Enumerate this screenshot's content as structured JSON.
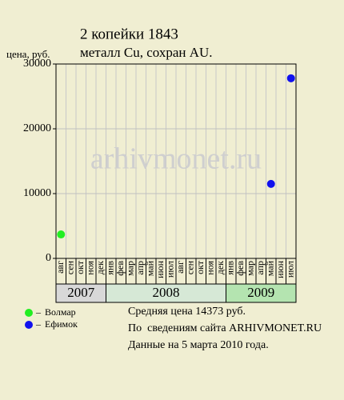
{
  "chart_data": {
    "type": "scatter",
    "title": "2 копейки 1843",
    "subtitle": "металл Cu, сохран AU.",
    "y_label": "цена, руб.",
    "watermark": "arhivmonet.ru",
    "groups": [
      {
        "label": "2007",
        "color": "#d8d8d8",
        "categories": [
          "авг",
          "сен",
          "окт",
          "ноя",
          "дек"
        ]
      },
      {
        "label": "2008",
        "color": "#d6e8d6",
        "categories": [
          "янв",
          "фев",
          "мар",
          "апр",
          "май",
          "июн",
          "июл",
          "авг",
          "сен",
          "окт",
          "ноя",
          "дек"
        ]
      },
      {
        "label": "2009",
        "color": "#b4e4b0",
        "categories": [
          "янв",
          "фев",
          "мар",
          "апр",
          "май",
          "июн",
          "июл"
        ]
      }
    ],
    "series": [
      {
        "name": "Волмар",
        "color": "#22ee22",
        "values": [
          3700,
          null,
          null,
          null,
          null,
          null,
          null,
          null,
          null,
          null,
          null,
          null,
          null,
          null,
          null,
          null,
          null,
          null,
          null,
          null,
          null,
          null,
          null,
          null
        ]
      },
      {
        "name": "Ефимок",
        "color": "#1111ee",
        "values": [
          null,
          null,
          null,
          null,
          null,
          null,
          null,
          null,
          null,
          null,
          null,
          null,
          null,
          null,
          null,
          null,
          null,
          null,
          null,
          null,
          null,
          11500,
          null,
          27800
        ]
      }
    ],
    "ylim": [
      0,
      30000
    ],
    "yticks": [
      0,
      10000,
      20000,
      30000
    ],
    "grid": true,
    "notes": [
      "Средняя цена 14373 руб.",
      "По  сведениям сайта ARHIVMONET.RU",
      "Данные на 5 марта 2010 года."
    ]
  }
}
